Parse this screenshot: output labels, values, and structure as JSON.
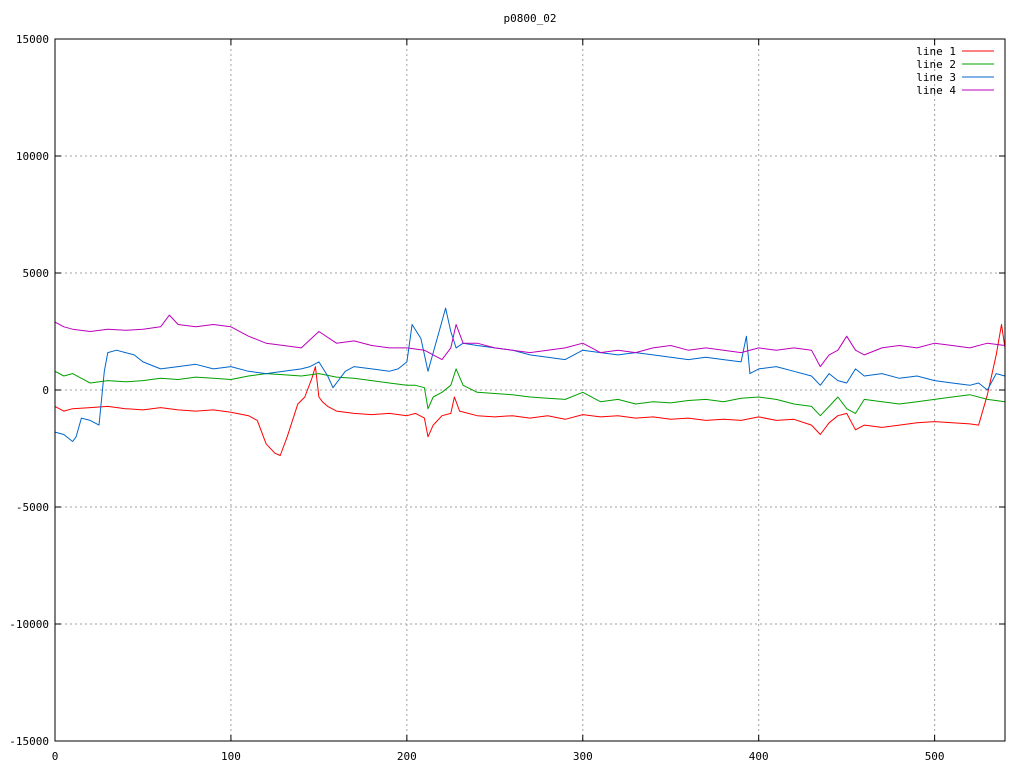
{
  "chart_data": {
    "type": "line",
    "title": "p0800_02",
    "xlabel": "",
    "ylabel": "",
    "xlim": [
      0,
      540
    ],
    "ylim": [
      -15000,
      15000
    ],
    "x_ticks": [
      "0",
      "100",
      "200",
      "300",
      "400",
      "500"
    ],
    "x_tick_values": [
      0,
      100,
      200,
      300,
      400,
      500
    ],
    "y_ticks": [
      "15000",
      "10000",
      "5000",
      "0",
      "-5000",
      "-10000",
      "-15000"
    ],
    "y_tick_values": [
      15000,
      10000,
      5000,
      0,
      -5000,
      -10000,
      -15000
    ],
    "grid": true,
    "legend_position": "top-right",
    "series": [
      {
        "name": "line 1",
        "color": "#ff0000",
        "x": [
          0,
          5,
          10,
          20,
          30,
          40,
          50,
          60,
          70,
          80,
          90,
          100,
          110,
          115,
          120,
          125,
          128,
          132,
          138,
          142,
          146,
          148,
          150,
          152,
          155,
          160,
          170,
          180,
          190,
          200,
          205,
          210,
          212,
          215,
          220,
          225,
          227,
          230,
          240,
          250,
          260,
          270,
          280,
          290,
          300,
          310,
          320,
          330,
          340,
          350,
          360,
          370,
          380,
          390,
          400,
          410,
          420,
          430,
          435,
          440,
          445,
          450,
          455,
          460,
          470,
          480,
          490,
          500,
          510,
          520,
          525,
          530,
          535,
          538,
          540
        ],
        "y": [
          -700,
          -900,
          -800,
          -750,
          -700,
          -800,
          -850,
          -750,
          -850,
          -900,
          -850,
          -950,
          -1100,
          -1300,
          -2300,
          -2700,
          -2800,
          -2000,
          -600,
          -300,
          500,
          1000,
          -300,
          -500,
          -700,
          -900,
          -1000,
          -1050,
          -1000,
          -1100,
          -1000,
          -1200,
          -2000,
          -1500,
          -1100,
          -1000,
          -300,
          -900,
          -1100,
          -1150,
          -1100,
          -1200,
          -1100,
          -1250,
          -1050,
          -1150,
          -1100,
          -1200,
          -1150,
          -1250,
          -1200,
          -1300,
          -1250,
          -1300,
          -1150,
          -1300,
          -1250,
          -1500,
          -1900,
          -1400,
          -1100,
          -1000,
          -1700,
          -1500,
          -1600,
          -1500,
          -1400,
          -1350,
          -1400,
          -1450,
          -1500,
          -200,
          1500,
          2800,
          1800
        ]
      },
      {
        "name": "line 2",
        "color": "#00a000",
        "x": [
          0,
          5,
          10,
          15,
          20,
          30,
          40,
          50,
          60,
          70,
          80,
          90,
          100,
          110,
          120,
          130,
          140,
          150,
          160,
          170,
          180,
          190,
          200,
          205,
          210,
          212,
          215,
          220,
          225,
          228,
          232,
          240,
          250,
          260,
          270,
          280,
          290,
          300,
          310,
          320,
          330,
          340,
          350,
          360,
          370,
          380,
          390,
          400,
          410,
          420,
          430,
          435,
          440,
          445,
          450,
          455,
          460,
          470,
          480,
          490,
          500,
          510,
          520,
          530,
          540
        ],
        "y": [
          800,
          600,
          700,
          500,
          300,
          400,
          350,
          400,
          500,
          450,
          550,
          500,
          450,
          600,
          700,
          650,
          600,
          700,
          550,
          500,
          400,
          300,
          200,
          200,
          100,
          -800,
          -300,
          -100,
          200,
          900,
          200,
          -100,
          -150,
          -200,
          -300,
          -350,
          -400,
          -100,
          -500,
          -400,
          -600,
          -500,
          -550,
          -450,
          -400,
          -500,
          -350,
          -300,
          -400,
          -600,
          -700,
          -1100,
          -700,
          -300,
          -800,
          -1000,
          -400,
          -500,
          -600,
          -500,
          -400,
          -300,
          -200,
          -400,
          -500
        ]
      },
      {
        "name": "line 3",
        "color": "#0066cc",
        "x": [
          0,
          5,
          10,
          12,
          15,
          20,
          25,
          28,
          30,
          35,
          40,
          45,
          50,
          60,
          70,
          80,
          90,
          100,
          110,
          120,
          130,
          140,
          145,
          150,
          155,
          158,
          162,
          165,
          170,
          180,
          190,
          195,
          200,
          203,
          208,
          212,
          215,
          218,
          222,
          225,
          228,
          232,
          240,
          250,
          260,
          270,
          280,
          290,
          300,
          310,
          320,
          330,
          340,
          350,
          360,
          370,
          380,
          390,
          393,
          395,
          400,
          410,
          420,
          430,
          435,
          440,
          445,
          450,
          455,
          460,
          470,
          480,
          490,
          500,
          510,
          520,
          525,
          530,
          535,
          540
        ],
        "y": [
          -1800,
          -1900,
          -2200,
          -2000,
          -1200,
          -1300,
          -1500,
          800,
          1600,
          1700,
          1600,
          1500,
          1200,
          900,
          1000,
          1100,
          900,
          1000,
          800,
          700,
          800,
          900,
          1000,
          1200,
          600,
          100,
          500,
          800,
          1000,
          900,
          800,
          900,
          1200,
          2800,
          2200,
          800,
          1600,
          2400,
          3500,
          2500,
          1800,
          2000,
          1900,
          1800,
          1700,
          1500,
          1400,
          1300,
          1700,
          1600,
          1500,
          1600,
          1500,
          1400,
          1300,
          1400,
          1300,
          1200,
          2300,
          700,
          900,
          1000,
          800,
          600,
          200,
          700,
          400,
          300,
          900,
          600,
          700,
          500,
          600,
          400,
          300,
          200,
          300,
          0,
          700,
          600
        ]
      },
      {
        "name": "line 4",
        "color": "#bb00bb",
        "x": [
          0,
          5,
          10,
          20,
          30,
          40,
          50,
          60,
          65,
          70,
          80,
          90,
          100,
          110,
          120,
          130,
          140,
          150,
          160,
          170,
          180,
          190,
          200,
          210,
          215,
          220,
          225,
          228,
          232,
          240,
          250,
          260,
          270,
          280,
          290,
          300,
          310,
          320,
          330,
          340,
          350,
          360,
          370,
          380,
          390,
          400,
          410,
          420,
          430,
          435,
          440,
          445,
          450,
          455,
          460,
          470,
          480,
          490,
          500,
          510,
          520,
          530,
          540
        ],
        "y": [
          2900,
          2700,
          2600,
          2500,
          2600,
          2550,
          2600,
          2700,
          3200,
          2800,
          2700,
          2800,
          2700,
          2300,
          2000,
          1900,
          1800,
          2500,
          2000,
          2100,
          1900,
          1800,
          1800,
          1700,
          1500,
          1300,
          1800,
          2800,
          2000,
          2000,
          1800,
          1700,
          1600,
          1700,
          1800,
          2000,
          1600,
          1700,
          1600,
          1800,
          1900,
          1700,
          1800,
          1700,
          1600,
          1800,
          1700,
          1800,
          1700,
          1000,
          1500,
          1700,
          2300,
          1700,
          1500,
          1800,
          1900,
          1800,
          2000,
          1900,
          1800,
          2000,
          1900
        ]
      }
    ]
  }
}
